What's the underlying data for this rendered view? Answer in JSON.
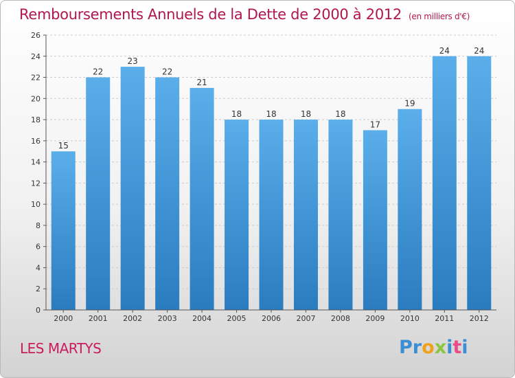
{
  "title": "Remboursements Annuels de la Dette de 2000 à 2012",
  "unit": "(en milliers d'€)",
  "commune": "LES MARTYS",
  "logo": {
    "letters": [
      {
        "ch": "P",
        "color": "#3a8ed3"
      },
      {
        "ch": "r",
        "color": "#3a8ed3"
      },
      {
        "ch": "o",
        "color": "#f0a11c"
      },
      {
        "ch": "x",
        "color": "#8cc63f"
      },
      {
        "ch": "i",
        "color": "#3a8ed3"
      },
      {
        "ch": "t",
        "color": "#e84c8a"
      },
      {
        "ch": "i",
        "color": "#3a8ed3"
      }
    ]
  },
  "colors": {
    "bar_top": "#5aaeea",
    "bar_bottom": "#2a7cbf",
    "grid": "#cccccc",
    "axis": "#555555",
    "title": "#b0174f"
  },
  "chart_data": {
    "type": "bar",
    "categories": [
      "2000",
      "2001",
      "2002",
      "2003",
      "2004",
      "2005",
      "2006",
      "2007",
      "2008",
      "2009",
      "2010",
      "2011",
      "2012"
    ],
    "values": [
      15,
      22,
      23,
      22,
      21,
      18,
      18,
      18,
      18,
      17,
      19,
      24,
      24
    ],
    "title": "Remboursements Annuels de la Dette de 2000 à 2012",
    "ylim": [
      0,
      26
    ],
    "yticks": [
      0,
      2,
      4,
      6,
      8,
      10,
      12,
      14,
      16,
      18,
      20,
      22,
      24,
      26
    ],
    "grid": true,
    "data_labels": true
  }
}
